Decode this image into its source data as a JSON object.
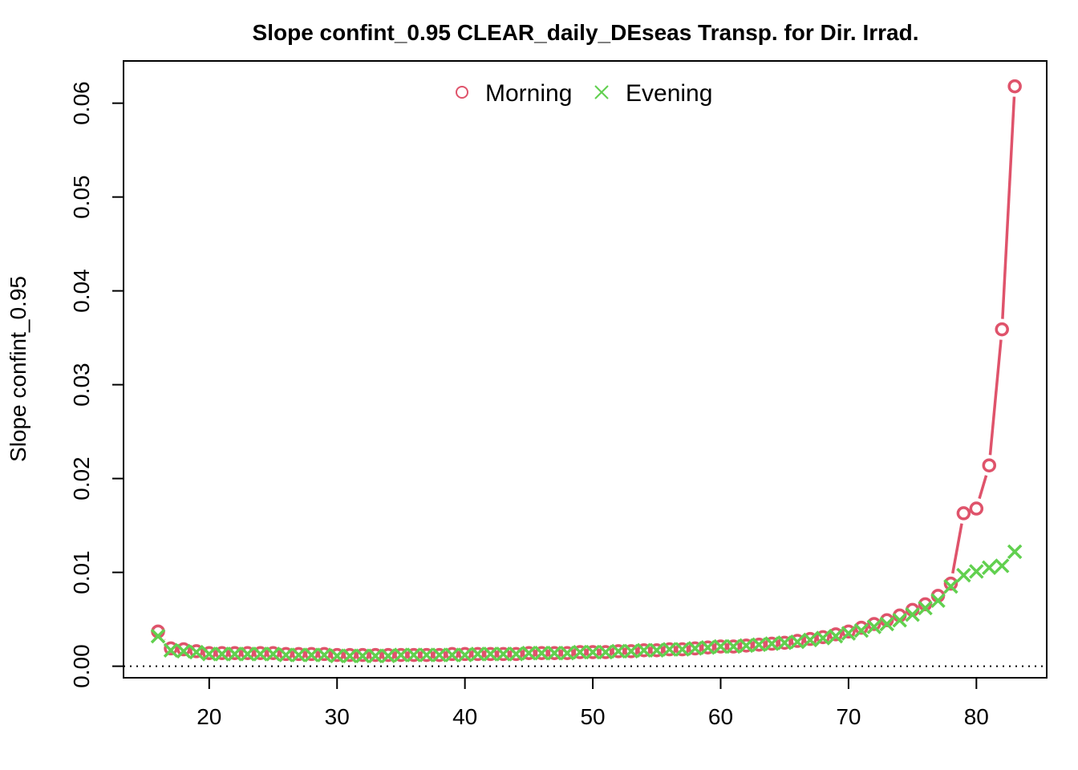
{
  "colors": {
    "morning": "#df536b",
    "evening": "#61d04f",
    "axis": "#000000"
  },
  "chart_data": {
    "type": "line",
    "title": "Slope confint_0.95 CLEAR_daily_DEseas Transp. for Dir. Irrad.",
    "xlabel": "",
    "ylabel": "Slope confint_0.95",
    "xlim": [
      13.3,
      85.5
    ],
    "ylim": [
      -0.00123,
      0.0645
    ],
    "x_ticks": [
      20,
      30,
      40,
      50,
      60,
      70,
      80
    ],
    "x_tick_labels": [
      "20",
      "30",
      "40",
      "50",
      "60",
      "70",
      "80"
    ],
    "y_ticks": [
      0,
      0.01,
      0.02,
      0.03,
      0.04,
      0.05,
      0.06
    ],
    "y_tick_labels": [
      "0.00",
      "0.01",
      "0.02",
      "0.03",
      "0.04",
      "0.05",
      "0.06"
    ],
    "reference_line": {
      "y": 0,
      "style": "dotted"
    },
    "legend": {
      "position": "top",
      "entries": [
        "Morning",
        "Evening"
      ]
    },
    "x": [
      16,
      17,
      18,
      19,
      20,
      21,
      22,
      23,
      24,
      25,
      26,
      27,
      28,
      29,
      30,
      31,
      32,
      33,
      34,
      35,
      36,
      37,
      38,
      39,
      40,
      41,
      42,
      43,
      44,
      45,
      46,
      47,
      48,
      49,
      50,
      51,
      52,
      53,
      54,
      55,
      56,
      57,
      58,
      59,
      60,
      61,
      62,
      63,
      64,
      65,
      66,
      67,
      68,
      69,
      70,
      71,
      72,
      73,
      74,
      75,
      76,
      77,
      78,
      79,
      80,
      81,
      82,
      83
    ],
    "series": [
      {
        "name": "Morning",
        "marker": "circle",
        "values": [
          0.0037,
          0.0019,
          0.0018,
          0.0016,
          0.0014,
          0.0014,
          0.0014,
          0.0014,
          0.0014,
          0.0014,
          0.0013,
          0.0013,
          0.0013,
          0.0013,
          0.0012,
          0.0012,
          0.0012,
          0.0012,
          0.0012,
          0.0012,
          0.0012,
          0.0012,
          0.0012,
          0.0013,
          0.0013,
          0.0013,
          0.0013,
          0.0013,
          0.0013,
          0.0014,
          0.0014,
          0.0014,
          0.0014,
          0.0015,
          0.0015,
          0.0015,
          0.0016,
          0.0016,
          0.0017,
          0.0017,
          0.0018,
          0.0018,
          0.0019,
          0.002,
          0.0021,
          0.0021,
          0.0022,
          0.0023,
          0.0024,
          0.0025,
          0.0027,
          0.0029,
          0.0031,
          0.0034,
          0.0037,
          0.0041,
          0.0045,
          0.0049,
          0.0054,
          0.006,
          0.0066,
          0.0075,
          0.0088,
          0.0163,
          0.0168,
          0.0214,
          0.0359,
          0.0618
        ]
      },
      {
        "name": "Evening",
        "marker": "cross",
        "values": [
          0.0032,
          0.0017,
          0.0016,
          0.0015,
          0.0013,
          0.0013,
          0.0013,
          0.0013,
          0.0013,
          0.0013,
          0.0012,
          0.0012,
          0.0012,
          0.0012,
          0.0011,
          0.0011,
          0.0011,
          0.0011,
          0.0011,
          0.0012,
          0.0012,
          0.0012,
          0.0012,
          0.0012,
          0.0012,
          0.0013,
          0.0013,
          0.0013,
          0.0013,
          0.0014,
          0.0014,
          0.0014,
          0.0014,
          0.0015,
          0.0015,
          0.0015,
          0.0016,
          0.0016,
          0.0017,
          0.0017,
          0.0018,
          0.0018,
          0.0019,
          0.002,
          0.0021,
          0.0021,
          0.0022,
          0.0023,
          0.0024,
          0.0025,
          0.0026,
          0.0028,
          0.003,
          0.0032,
          0.0035,
          0.0038,
          0.0042,
          0.0045,
          0.0049,
          0.0055,
          0.0062,
          0.007,
          0.0085,
          0.0097,
          0.0101,
          0.0105,
          0.0107,
          0.0122
        ]
      }
    ]
  }
}
